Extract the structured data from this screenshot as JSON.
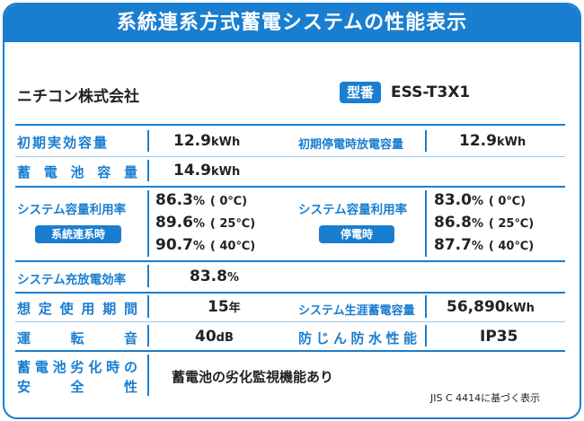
{
  "title": "系統連系方式蓄電システムの性能表示",
  "maker": "ニチコン株式会社",
  "model": {
    "label": "型番",
    "value": "ESS-T3X1"
  },
  "initial_capacity": {
    "label": "初期実効容量",
    "value": "12.9",
    "unit": "kWh"
  },
  "outage_capacity": {
    "label": "初期停電時放電容量",
    "value": "12.9",
    "unit": "kWh"
  },
  "battery_capacity": {
    "label": "蓄電池容量",
    "value": "14.9",
    "unit": "kWh"
  },
  "utilization_grid": {
    "label": "システム容量利用率",
    "badge": "系統連系時",
    "rows": [
      {
        "value": "86.3",
        "unit": "%",
        "temp": "( 0℃)"
      },
      {
        "value": "89.6",
        "unit": "%",
        "temp": "( 25℃)"
      },
      {
        "value": "90.7",
        "unit": "%",
        "temp": "( 40℃)"
      }
    ]
  },
  "utilization_outage": {
    "label": "システム容量利用率",
    "badge": "停電時",
    "rows": [
      {
        "value": "83.0",
        "unit": "%",
        "temp": "( 0℃)"
      },
      {
        "value": "86.8",
        "unit": "%",
        "temp": "( 25℃)"
      },
      {
        "value": "87.7",
        "unit": "%",
        "temp": "( 40℃)"
      }
    ]
  },
  "efficiency": {
    "label": "システム充放電効率",
    "value": "83.8",
    "unit": "%"
  },
  "service_life": {
    "label": "想定使用期間",
    "value": "15",
    "unit": "年"
  },
  "lifetime_storage": {
    "label": "システム生涯蓄電容量",
    "value": "56,890",
    "unit": "kWh"
  },
  "noise": {
    "label": "運転音",
    "value": "40",
    "unit": "dB"
  },
  "waterproof": {
    "label": "防じん防水性能",
    "value": "IP35"
  },
  "degradation": {
    "label_line1": "蓄電池劣化時の",
    "label_line2": "安全性",
    "value": "蓄電池の劣化監視機能あり"
  },
  "note": "JIS C 4414に基づく表示",
  "colors": {
    "accent": "#1a7ed0",
    "text": "#222222",
    "background": "#ffffff"
  }
}
